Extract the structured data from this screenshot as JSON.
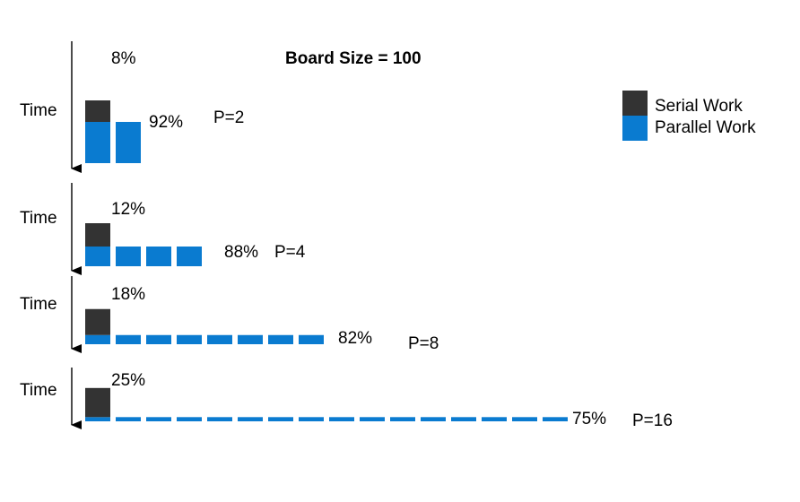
{
  "title": "Board Size = 100",
  "legend": {
    "serial_label": "Serial Work",
    "parallel_label": "Parallel Work"
  },
  "colors": {
    "serial": "#333333",
    "parallel": "#0a7bd0"
  },
  "panels": [
    {
      "time_label": "Time",
      "processors": 2,
      "processors_label": "P=2",
      "serial_pct": 8,
      "serial_label": "8%",
      "parallel_pct": 92,
      "parallel_label": "92%"
    },
    {
      "time_label": "Time",
      "processors": 4,
      "processors_label": "P=4",
      "serial_pct": 12,
      "serial_label": "12%",
      "parallel_pct": 88,
      "parallel_label": "88%"
    },
    {
      "time_label": "Time",
      "processors": 8,
      "processors_label": "P=8",
      "serial_pct": 18,
      "serial_label": "18%",
      "parallel_pct": 82,
      "parallel_label": "82%"
    },
    {
      "time_label": "Time",
      "processors": 16,
      "processors_label": "P=16",
      "serial_pct": 25,
      "serial_label": "25%",
      "parallel_pct": 75,
      "parallel_label": "75%"
    }
  ]
}
